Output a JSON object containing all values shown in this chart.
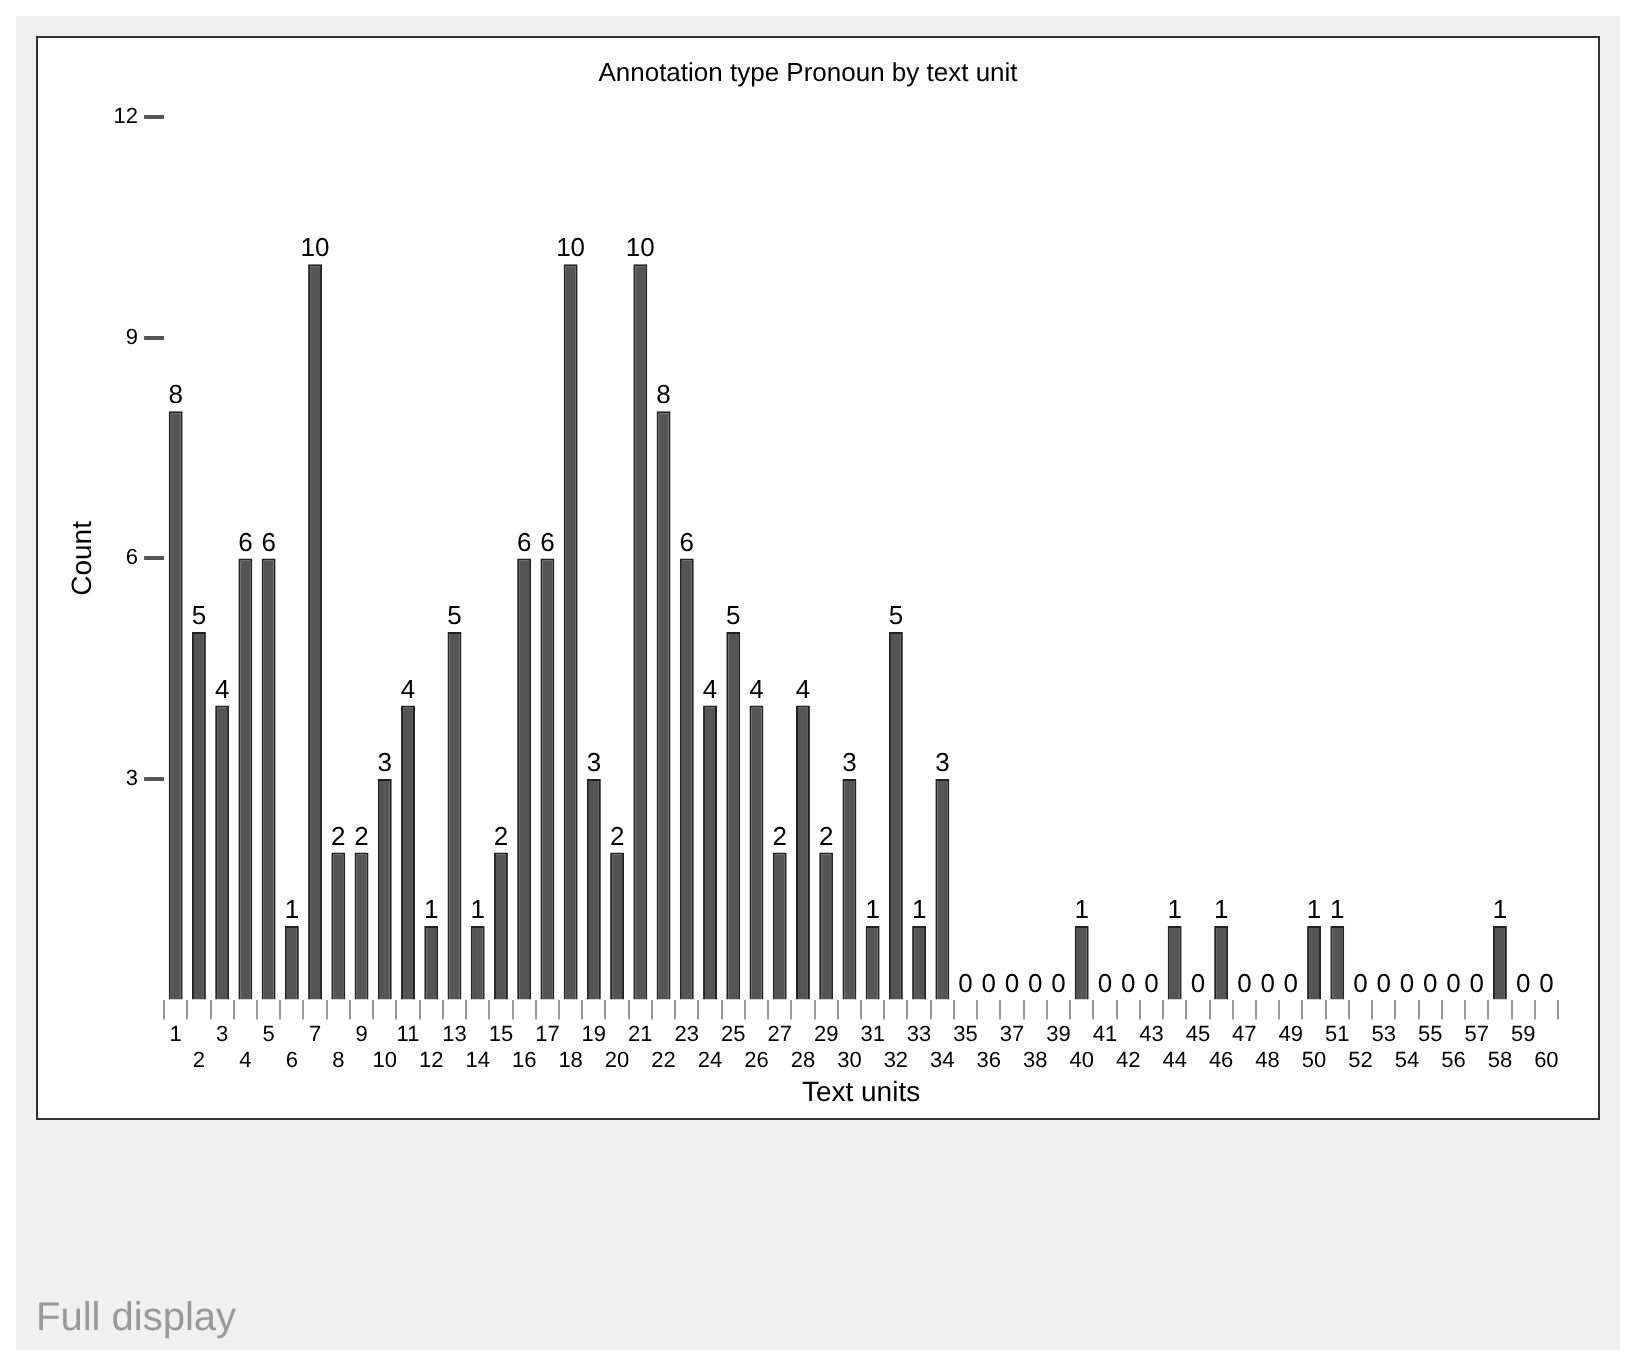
{
  "chart_data": {
    "type": "bar",
    "title": "Annotation type Pronoun by text unit",
    "xlabel": "Text units",
    "ylabel": "Count",
    "categories": [
      "1",
      "2",
      "3",
      "4",
      "5",
      "6",
      "7",
      "8",
      "9",
      "10",
      "11",
      "12",
      "13",
      "14",
      "15",
      "16",
      "17",
      "18",
      "19",
      "20",
      "21",
      "22",
      "23",
      "24",
      "25",
      "26",
      "27",
      "28",
      "29",
      "30",
      "31",
      "32",
      "33",
      "34",
      "35",
      "36",
      "37",
      "38",
      "39",
      "40",
      "41",
      "42",
      "43",
      "44",
      "45",
      "46",
      "47",
      "48",
      "49",
      "50",
      "51",
      "52",
      "53",
      "54",
      "55",
      "56",
      "57",
      "58",
      "59",
      "60"
    ],
    "values": [
      8,
      5,
      4,
      6,
      6,
      1,
      10,
      2,
      2,
      3,
      4,
      1,
      5,
      1,
      2,
      6,
      6,
      10,
      3,
      2,
      10,
      8,
      6,
      4,
      5,
      4,
      2,
      4,
      2,
      3,
      1,
      5,
      1,
      3,
      0,
      0,
      0,
      0,
      0,
      1,
      0,
      0,
      0,
      1,
      0,
      1,
      0,
      0,
      0,
      1,
      1,
      0,
      0,
      0,
      0,
      0,
      0,
      1,
      0,
      0
    ],
    "color": "#555555",
    "ylim": [
      0,
      12
    ],
    "yticks": [
      3,
      6,
      9,
      12
    ],
    "data_labels": true,
    "grid": false,
    "legend": false,
    "annotations": [
      "Full display"
    ]
  }
}
